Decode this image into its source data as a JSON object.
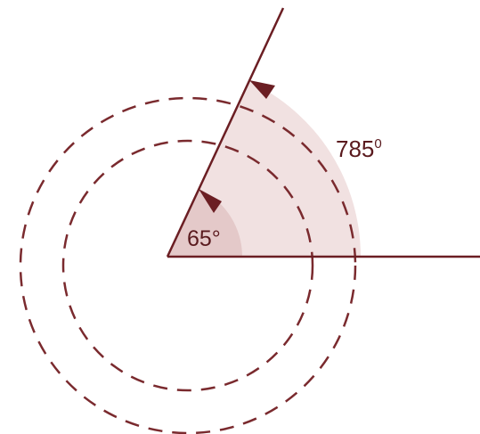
{
  "colors": {
    "line": "#6b1e23",
    "dash": "#7a2a2e",
    "big_sector_fill": "#f1e1e1",
    "small_sector_fill": "#e4c9c9"
  },
  "angles": {
    "small": {
      "label": "65°",
      "degrees": 65
    },
    "large": {
      "label_number": "785",
      "label_degree": "0",
      "degrees": 785
    }
  }
}
